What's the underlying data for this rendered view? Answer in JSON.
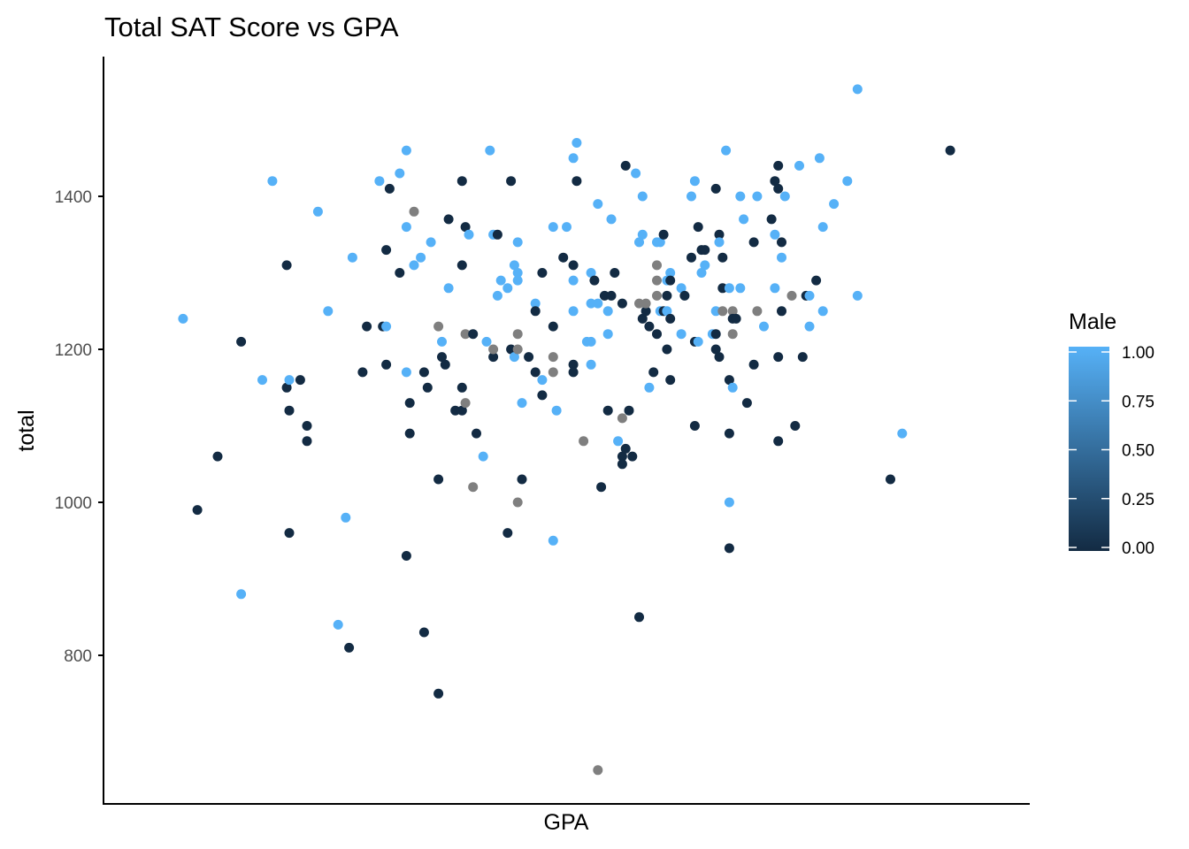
{
  "chart_data": {
    "type": "scatter",
    "title": "Total SAT Score vs GPA",
    "xlabel": "GPA",
    "ylabel": "total",
    "x_tick_labels_shown": false,
    "ylim": [
      620,
      1575
    ],
    "xlim": [
      0.0,
      1.0
    ],
    "y_ticks": [
      800,
      1000,
      1200,
      1400
    ],
    "y_tick_labels": [
      "800",
      "1000",
      "1200",
      "1400"
    ],
    "grid": false,
    "legend": {
      "title": "Male",
      "position": "right",
      "type": "colorbar",
      "min": 0.0,
      "max": 1.0,
      "ticks": [
        "0.00",
        "0.25",
        "0.50",
        "0.75",
        "1.00"
      ],
      "low_color": "#132b43",
      "high_color": "#56b1f7",
      "na_color": "#7f7f7f"
    },
    "x_note": "GPA axis has no tick labels; x values given as relative position within the x range (0 to 1).",
    "points": [
      {
        "x": 0.045,
        "y": 1240,
        "male": 1
      },
      {
        "x": 0.062,
        "y": 990,
        "male": 0
      },
      {
        "x": 0.086,
        "y": 1060,
        "male": 0
      },
      {
        "x": 0.114,
        "y": 880,
        "male": 1
      },
      {
        "x": 0.114,
        "y": 1210,
        "male": 0
      },
      {
        "x": 0.139,
        "y": 1160,
        "male": 1
      },
      {
        "x": 0.151,
        "y": 1420,
        "male": 1
      },
      {
        "x": 0.168,
        "y": 1310,
        "male": 0
      },
      {
        "x": 0.168,
        "y": 1150,
        "male": 0
      },
      {
        "x": 0.171,
        "y": 1160,
        "male": 1
      },
      {
        "x": 0.171,
        "y": 1120,
        "male": 0
      },
      {
        "x": 0.171,
        "y": 960,
        "male": 0
      },
      {
        "x": 0.184,
        "y": 1160,
        "male": 0
      },
      {
        "x": 0.192,
        "y": 1100,
        "male": 0
      },
      {
        "x": 0.192,
        "y": 1080,
        "male": 0
      },
      {
        "x": 0.205,
        "y": 1380,
        "male": 1
      },
      {
        "x": 0.217,
        "y": 1250,
        "male": 1
      },
      {
        "x": 0.229,
        "y": 840,
        "male": 1
      },
      {
        "x": 0.238,
        "y": 980,
        "male": 1
      },
      {
        "x": 0.242,
        "y": 810,
        "male": 0
      },
      {
        "x": 0.246,
        "y": 1320,
        "male": 1
      },
      {
        "x": 0.258,
        "y": 1170,
        "male": 0
      },
      {
        "x": 0.263,
        "y": 1230,
        "male": 0
      },
      {
        "x": 0.278,
        "y": 1420,
        "male": 1
      },
      {
        "x": 0.282,
        "y": 1230,
        "male": 0
      },
      {
        "x": 0.286,
        "y": 1230,
        "male": 1
      },
      {
        "x": 0.286,
        "y": 1180,
        "male": 0
      },
      {
        "x": 0.286,
        "y": 1330,
        "male": 0
      },
      {
        "x": 0.29,
        "y": 1410,
        "male": 0
      },
      {
        "x": 0.302,
        "y": 1430,
        "male": 1
      },
      {
        "x": 0.302,
        "y": 1300,
        "male": 0
      },
      {
        "x": 0.31,
        "y": 1460,
        "male": 1
      },
      {
        "x": 0.31,
        "y": 1360,
        "male": 1
      },
      {
        "x": 0.31,
        "y": 1170,
        "male": 1
      },
      {
        "x": 0.31,
        "y": 930,
        "male": 0
      },
      {
        "x": 0.314,
        "y": 1130,
        "male": 0
      },
      {
        "x": 0.314,
        "y": 1090,
        "male": 0
      },
      {
        "x": 0.319,
        "y": 1310,
        "male": 1
      },
      {
        "x": 0.319,
        "y": 1380,
        "male": null
      },
      {
        "x": 0.327,
        "y": 1320,
        "male": 1
      },
      {
        "x": 0.331,
        "y": 1170,
        "male": 0
      },
      {
        "x": 0.331,
        "y": 830,
        "male": 0
      },
      {
        "x": 0.335,
        "y": 1150,
        "male": 0
      },
      {
        "x": 0.339,
        "y": 1340,
        "male": 1
      },
      {
        "x": 0.348,
        "y": 1230,
        "male": null
      },
      {
        "x": 0.348,
        "y": 1030,
        "male": 0
      },
      {
        "x": 0.348,
        "y": 750,
        "male": 0
      },
      {
        "x": 0.352,
        "y": 1210,
        "male": 1
      },
      {
        "x": 0.352,
        "y": 1190,
        "male": 0
      },
      {
        "x": 0.356,
        "y": 1180,
        "male": 0
      },
      {
        "x": 0.36,
        "y": 1280,
        "male": 1
      },
      {
        "x": 0.36,
        "y": 1370,
        "male": 0
      },
      {
        "x": 0.368,
        "y": 1120,
        "male": 0
      },
      {
        "x": 0.376,
        "y": 1420,
        "male": 0
      },
      {
        "x": 0.376,
        "y": 1310,
        "male": 0
      },
      {
        "x": 0.376,
        "y": 1150,
        "male": 0
      },
      {
        "x": 0.376,
        "y": 1120,
        "male": 0
      },
      {
        "x": 0.38,
        "y": 1360,
        "male": 0
      },
      {
        "x": 0.38,
        "y": 1220,
        "male": null
      },
      {
        "x": 0.38,
        "y": 1130,
        "male": null
      },
      {
        "x": 0.384,
        "y": 1350,
        "male": 1
      },
      {
        "x": 0.389,
        "y": 1220,
        "male": 0
      },
      {
        "x": 0.389,
        "y": 1020,
        "male": null
      },
      {
        "x": 0.393,
        "y": 1090,
        "male": 0
      },
      {
        "x": 0.401,
        "y": 1060,
        "male": 1
      },
      {
        "x": 0.405,
        "y": 1210,
        "male": 1
      },
      {
        "x": 0.409,
        "y": 1460,
        "male": 1
      },
      {
        "x": 0.413,
        "y": 1350,
        "male": 1
      },
      {
        "x": 0.413,
        "y": 1190,
        "male": 0
      },
      {
        "x": 0.413,
        "y": 1200,
        "male": null
      },
      {
        "x": 0.418,
        "y": 1350,
        "male": 0
      },
      {
        "x": 0.418,
        "y": 1270,
        "male": 1
      },
      {
        "x": 0.422,
        "y": 1290,
        "male": 1
      },
      {
        "x": 0.43,
        "y": 1280,
        "male": 1
      },
      {
        "x": 0.43,
        "y": 960,
        "male": 0
      },
      {
        "x": 0.434,
        "y": 1420,
        "male": 0
      },
      {
        "x": 0.434,
        "y": 1200,
        "male": 0
      },
      {
        "x": 0.438,
        "y": 1310,
        "male": 1
      },
      {
        "x": 0.438,
        "y": 1190,
        "male": 1
      },
      {
        "x": 0.442,
        "y": 1300,
        "male": 1
      },
      {
        "x": 0.442,
        "y": 1290,
        "male": 1
      },
      {
        "x": 0.442,
        "y": 1340,
        "male": 1
      },
      {
        "x": 0.442,
        "y": 1220,
        "male": null
      },
      {
        "x": 0.442,
        "y": 1200,
        "male": null
      },
      {
        "x": 0.442,
        "y": 1000,
        "male": null
      },
      {
        "x": 0.447,
        "y": 1130,
        "male": 1
      },
      {
        "x": 0.447,
        "y": 1030,
        "male": 0
      },
      {
        "x": 0.455,
        "y": 1190,
        "male": 0
      },
      {
        "x": 0.463,
        "y": 1260,
        "male": 1
      },
      {
        "x": 0.463,
        "y": 1250,
        "male": 0
      },
      {
        "x": 0.463,
        "y": 1170,
        "male": 0
      },
      {
        "x": 0.471,
        "y": 1300,
        "male": 0
      },
      {
        "x": 0.471,
        "y": 1160,
        "male": 1
      },
      {
        "x": 0.471,
        "y": 1140,
        "male": 0
      },
      {
        "x": 0.484,
        "y": 1360,
        "male": 1
      },
      {
        "x": 0.484,
        "y": 1230,
        "male": 0
      },
      {
        "x": 0.484,
        "y": 1190,
        "male": null
      },
      {
        "x": 0.484,
        "y": 1170,
        "male": null
      },
      {
        "x": 0.484,
        "y": 950,
        "male": 1
      },
      {
        "x": 0.488,
        "y": 1120,
        "male": 1
      },
      {
        "x": 0.496,
        "y": 1320,
        "male": 0
      },
      {
        "x": 0.5,
        "y": 1360,
        "male": 1
      },
      {
        "x": 0.508,
        "y": 1310,
        "male": 0
      },
      {
        "x": 0.508,
        "y": 1290,
        "male": 1
      },
      {
        "x": 0.508,
        "y": 1250,
        "male": 1
      },
      {
        "x": 0.508,
        "y": 1180,
        "male": 0
      },
      {
        "x": 0.508,
        "y": 1170,
        "male": 0
      },
      {
        "x": 0.508,
        "y": 1450,
        "male": 1
      },
      {
        "x": 0.512,
        "y": 1470,
        "male": 1
      },
      {
        "x": 0.512,
        "y": 1420,
        "male": 0
      },
      {
        "x": 0.52,
        "y": 1080,
        "male": null
      },
      {
        "x": 0.524,
        "y": 1210,
        "male": 1
      },
      {
        "x": 0.529,
        "y": 1300,
        "male": 1
      },
      {
        "x": 0.529,
        "y": 1260,
        "male": 1
      },
      {
        "x": 0.529,
        "y": 1210,
        "male": 1
      },
      {
        "x": 0.529,
        "y": 1180,
        "male": 1
      },
      {
        "x": 0.533,
        "y": 1290,
        "male": 0
      },
      {
        "x": 0.537,
        "y": 1390,
        "male": 1
      },
      {
        "x": 0.537,
        "y": 1260,
        "male": 1
      },
      {
        "x": 0.537,
        "y": 650,
        "male": null
      },
      {
        "x": 0.541,
        "y": 1020,
        "male": 0
      },
      {
        "x": 0.545,
        "y": 1270,
        "male": 0
      },
      {
        "x": 0.549,
        "y": 1250,
        "male": 1
      },
      {
        "x": 0.549,
        "y": 1220,
        "male": 1
      },
      {
        "x": 0.549,
        "y": 1120,
        "male": 0
      },
      {
        "x": 0.553,
        "y": 1370,
        "male": 1
      },
      {
        "x": 0.553,
        "y": 1270,
        "male": 0
      },
      {
        "x": 0.557,
        "y": 1300,
        "male": 0
      },
      {
        "x": 0.561,
        "y": 1080,
        "male": 1
      },
      {
        "x": 0.566,
        "y": 1260,
        "male": 0
      },
      {
        "x": 0.566,
        "y": 1110,
        "male": null
      },
      {
        "x": 0.566,
        "y": 1060,
        "male": 0
      },
      {
        "x": 0.566,
        "y": 1050,
        "male": 0
      },
      {
        "x": 0.57,
        "y": 1440,
        "male": 0
      },
      {
        "x": 0.57,
        "y": 1070,
        "male": 0
      },
      {
        "x": 0.574,
        "y": 1120,
        "male": 0
      },
      {
        "x": 0.578,
        "y": 1060,
        "male": 0
      },
      {
        "x": 0.582,
        "y": 1430,
        "male": 1
      },
      {
        "x": 0.586,
        "y": 1340,
        "male": 1
      },
      {
        "x": 0.586,
        "y": 1260,
        "male": null
      },
      {
        "x": 0.586,
        "y": 850,
        "male": 0
      },
      {
        "x": 0.59,
        "y": 1400,
        "male": 1
      },
      {
        "x": 0.59,
        "y": 1350,
        "male": 1
      },
      {
        "x": 0.59,
        "y": 1240,
        "male": 0
      },
      {
        "x": 0.594,
        "y": 1250,
        "male": 0
      },
      {
        "x": 0.594,
        "y": 1260,
        "male": null
      },
      {
        "x": 0.598,
        "y": 1230,
        "male": 0
      },
      {
        "x": 0.598,
        "y": 1150,
        "male": 1
      },
      {
        "x": 0.603,
        "y": 1170,
        "male": 0
      },
      {
        "x": 0.607,
        "y": 1340,
        "male": 1
      },
      {
        "x": 0.607,
        "y": 1310,
        "male": null
      },
      {
        "x": 0.607,
        "y": 1290,
        "male": null
      },
      {
        "x": 0.607,
        "y": 1270,
        "male": null
      },
      {
        "x": 0.607,
        "y": 1220,
        "male": 0
      },
      {
        "x": 0.611,
        "y": 1340,
        "male": 1
      },
      {
        "x": 0.611,
        "y": 1250,
        "male": 1
      },
      {
        "x": 0.615,
        "y": 1350,
        "male": 0
      },
      {
        "x": 0.615,
        "y": 1250,
        "male": 0
      },
      {
        "x": 0.619,
        "y": 1290,
        "male": 1
      },
      {
        "x": 0.619,
        "y": 1270,
        "male": 0
      },
      {
        "x": 0.619,
        "y": 1250,
        "male": 1
      },
      {
        "x": 0.619,
        "y": 1200,
        "male": 0
      },
      {
        "x": 0.623,
        "y": 1300,
        "male": 1
      },
      {
        "x": 0.623,
        "y": 1290,
        "male": 0
      },
      {
        "x": 0.623,
        "y": 1240,
        "male": 0
      },
      {
        "x": 0.623,
        "y": 1160,
        "male": 0
      },
      {
        "x": 0.636,
        "y": 1280,
        "male": 1
      },
      {
        "x": 0.636,
        "y": 1220,
        "male": 1
      },
      {
        "x": 0.64,
        "y": 1270,
        "male": 0
      },
      {
        "x": 0.648,
        "y": 1400,
        "male": 1
      },
      {
        "x": 0.648,
        "y": 1320,
        "male": 0
      },
      {
        "x": 0.652,
        "y": 1420,
        "male": 1
      },
      {
        "x": 0.652,
        "y": 1210,
        "male": 0
      },
      {
        "x": 0.652,
        "y": 1100,
        "male": 0
      },
      {
        "x": 0.656,
        "y": 1360,
        "male": 0
      },
      {
        "x": 0.656,
        "y": 1210,
        "male": 1
      },
      {
        "x": 0.66,
        "y": 1330,
        "male": 0
      },
      {
        "x": 0.66,
        "y": 1300,
        "male": 1
      },
      {
        "x": 0.664,
        "y": 1310,
        "male": 1
      },
      {
        "x": 0.664,
        "y": 1330,
        "male": 0
      },
      {
        "x": 0.673,
        "y": 1220,
        "male": 1
      },
      {
        "x": 0.677,
        "y": 1410,
        "male": 0
      },
      {
        "x": 0.677,
        "y": 1220,
        "male": 0
      },
      {
        "x": 0.677,
        "y": 1200,
        "male": 0
      },
      {
        "x": 0.677,
        "y": 1250,
        "male": 1
      },
      {
        "x": 0.681,
        "y": 1350,
        "male": 0
      },
      {
        "x": 0.681,
        "y": 1340,
        "male": 1
      },
      {
        "x": 0.681,
        "y": 1190,
        "male": 0
      },
      {
        "x": 0.685,
        "y": 1320,
        "male": 0
      },
      {
        "x": 0.685,
        "y": 1280,
        "male": 0
      },
      {
        "x": 0.685,
        "y": 1250,
        "male": null
      },
      {
        "x": 0.689,
        "y": 1460,
        "male": 1
      },
      {
        "x": 0.693,
        "y": 1280,
        "male": 1
      },
      {
        "x": 0.693,
        "y": 1160,
        "male": 0
      },
      {
        "x": 0.693,
        "y": 1090,
        "male": 0
      },
      {
        "x": 0.693,
        "y": 1000,
        "male": 1
      },
      {
        "x": 0.693,
        "y": 940,
        "male": 0
      },
      {
        "x": 0.697,
        "y": 1250,
        "male": null
      },
      {
        "x": 0.697,
        "y": 1240,
        "male": 0
      },
      {
        "x": 0.697,
        "y": 1220,
        "male": null
      },
      {
        "x": 0.697,
        "y": 1150,
        "male": 1
      },
      {
        "x": 0.701,
        "y": 1240,
        "male": 0
      },
      {
        "x": 0.706,
        "y": 1400,
        "male": 1
      },
      {
        "x": 0.706,
        "y": 1280,
        "male": 1
      },
      {
        "x": 0.71,
        "y": 1370,
        "male": 1
      },
      {
        "x": 0.714,
        "y": 1130,
        "male": 0
      },
      {
        "x": 0.722,
        "y": 1340,
        "male": 0
      },
      {
        "x": 0.722,
        "y": 1180,
        "male": 0
      },
      {
        "x": 0.726,
        "y": 1400,
        "male": 1
      },
      {
        "x": 0.726,
        "y": 1250,
        "male": null
      },
      {
        "x": 0.734,
        "y": 1230,
        "male": 1
      },
      {
        "x": 0.743,
        "y": 1370,
        "male": 0
      },
      {
        "x": 0.747,
        "y": 1420,
        "male": 0
      },
      {
        "x": 0.747,
        "y": 1350,
        "male": 1
      },
      {
        "x": 0.747,
        "y": 1280,
        "male": 1
      },
      {
        "x": 0.751,
        "y": 1440,
        "male": 0
      },
      {
        "x": 0.751,
        "y": 1410,
        "male": 0
      },
      {
        "x": 0.751,
        "y": 1190,
        "male": 0
      },
      {
        "x": 0.751,
        "y": 1080,
        "male": 0
      },
      {
        "x": 0.755,
        "y": 1340,
        "male": 0
      },
      {
        "x": 0.755,
        "y": 1320,
        "male": 1
      },
      {
        "x": 0.755,
        "y": 1250,
        "male": 0
      },
      {
        "x": 0.759,
        "y": 1400,
        "male": 1
      },
      {
        "x": 0.767,
        "y": 1270,
        "male": null
      },
      {
        "x": 0.771,
        "y": 1100,
        "male": 0
      },
      {
        "x": 0.776,
        "y": 1440,
        "male": 1
      },
      {
        "x": 0.78,
        "y": 1190,
        "male": 0
      },
      {
        "x": 0.784,
        "y": 1270,
        "male": 0
      },
      {
        "x": 0.788,
        "y": 1270,
        "male": 1
      },
      {
        "x": 0.788,
        "y": 1230,
        "male": 1
      },
      {
        "x": 0.796,
        "y": 1290,
        "male": 0
      },
      {
        "x": 0.8,
        "y": 1450,
        "male": 1
      },
      {
        "x": 0.804,
        "y": 1360,
        "male": 1
      },
      {
        "x": 0.804,
        "y": 1250,
        "male": 1
      },
      {
        "x": 0.817,
        "y": 1390,
        "male": 1
      },
      {
        "x": 0.833,
        "y": 1420,
        "male": 1
      },
      {
        "x": 0.845,
        "y": 1540,
        "male": 1
      },
      {
        "x": 0.845,
        "y": 1270,
        "male": 1
      },
      {
        "x": 0.884,
        "y": 1030,
        "male": 0
      },
      {
        "x": 0.898,
        "y": 1090,
        "male": 1
      },
      {
        "x": 0.955,
        "y": 1460,
        "male": 0
      }
    ]
  }
}
